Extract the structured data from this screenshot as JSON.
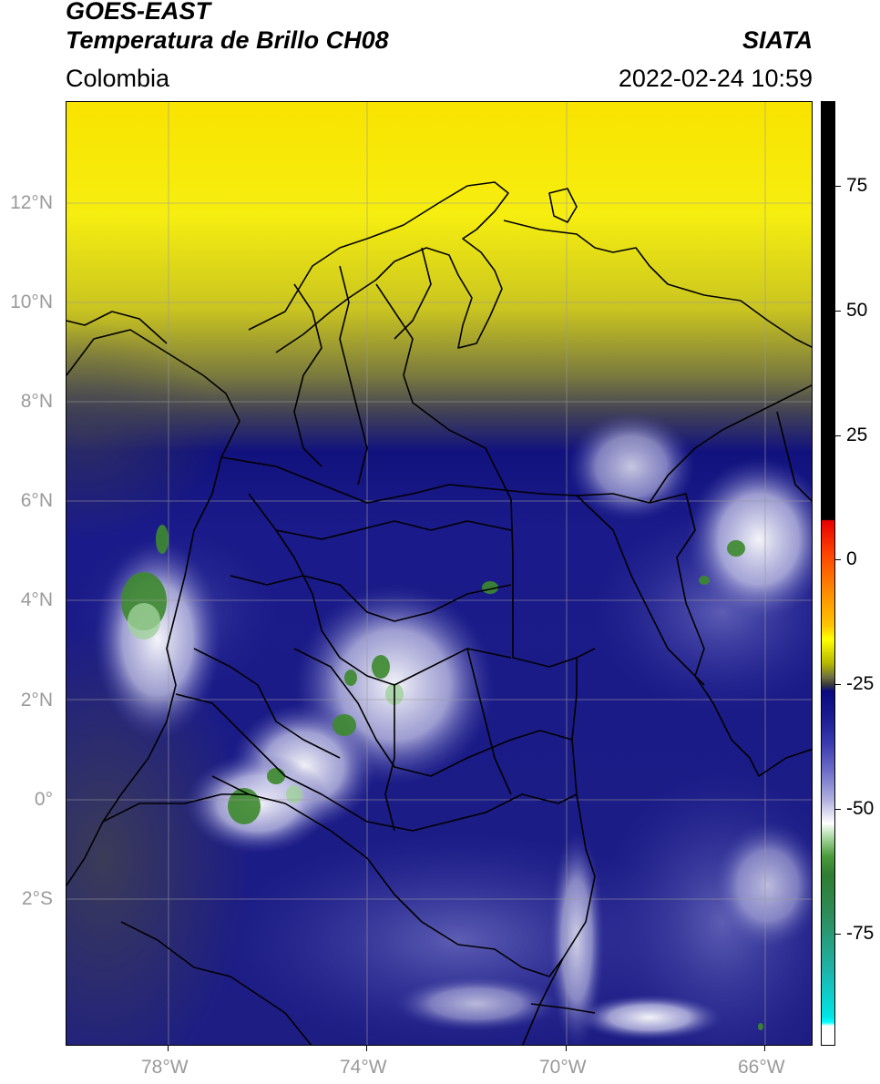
{
  "header": {
    "title_line1": "GOES-EAST",
    "title_line2": "Temperatura de Brillo CH08",
    "region": "Colombia",
    "source": "SIATA",
    "timestamp": "2022-02-24 10:59"
  },
  "axes": {
    "y_labels": [
      "12°N",
      "10°N",
      "8°N",
      "6°N",
      "4°N",
      "2°N",
      "0°",
      "2°S"
    ],
    "x_labels": [
      "78°W",
      "74°W",
      "70°W",
      "66°W"
    ]
  },
  "colorbar": {
    "labels": [
      "75",
      "50",
      "25",
      "0",
      "-25",
      "-50",
      "-75"
    ]
  },
  "colors": {
    "warm_yellow": "#f5ec00",
    "cloud_navy": "#1a1a8c",
    "convective_green": "#3d8a2e",
    "border_lines": "#000000"
  }
}
